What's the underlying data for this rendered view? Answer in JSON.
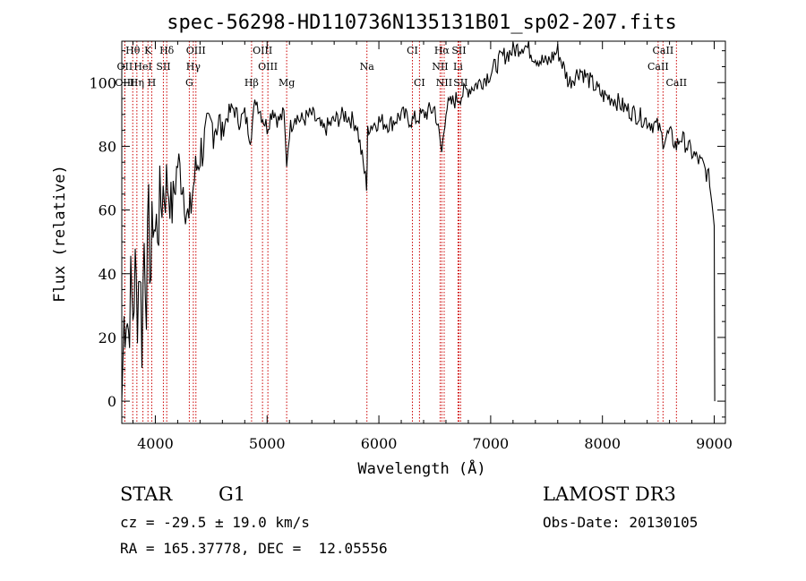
{
  "chart_data": {
    "type": "line",
    "title": "spec-56298-HD110736N135131B01_sp02-207.fits",
    "xlabel": "Wavelength (Å)",
    "ylabel": "Flux (relative)",
    "xlim": [
      3700,
      9100
    ],
    "ylim": [
      -7,
      113
    ],
    "xticks": [
      4000,
      5000,
      6000,
      7000,
      8000,
      9000
    ],
    "yticks": [
      0,
      20,
      40,
      60,
      80,
      100
    ],
    "series": [
      {
        "name": "flux",
        "x": [
          3700,
          3720,
          3740,
          3760,
          3780,
          3800,
          3820,
          3840,
          3860,
          3880,
          3900,
          3920,
          3940,
          3960,
          3980,
          4000,
          4030,
          4060,
          4100,
          4150,
          4200,
          4250,
          4300,
          4330,
          4350,
          4400,
          4450,
          4500,
          4550,
          4600,
          4650,
          4700,
          4750,
          4800,
          4850,
          4900,
          4950,
          5000,
          5050,
          5100,
          5150,
          5175,
          5200,
          5250,
          5300,
          5400,
          5500,
          5600,
          5700,
          5800,
          5890,
          5895,
          5900,
          6000,
          6100,
          6200,
          6300,
          6400,
          6500,
          6563,
          6600,
          6700,
          6800,
          6900,
          7000,
          7100,
          7200,
          7300,
          7400,
          7500,
          7600,
          7700,
          7800,
          7900,
          8000,
          8100,
          8200,
          8300,
          8400,
          8500,
          8542,
          8600,
          8662,
          8700,
          8800,
          8900,
          8950,
          8980,
          9000,
          9005
        ],
        "y": [
          0,
          25,
          30,
          22,
          35,
          28,
          40,
          30,
          45,
          20,
          50,
          35,
          55,
          40,
          60,
          52,
          58,
          65,
          70,
          60,
          75,
          68,
          55,
          65,
          70,
          78,
          82,
          86,
          88,
          85,
          90,
          92,
          88,
          90,
          83,
          95,
          90,
          86,
          92,
          88,
          90,
          75,
          85,
          90,
          88,
          90,
          85,
          88,
          90,
          87,
          68,
          75,
          86,
          88,
          87,
          90,
          88,
          90,
          92,
          78,
          92,
          95,
          98,
          100,
          103,
          108,
          110,
          112,
          108,
          106,
          110,
          100,
          104,
          100,
          96,
          95,
          92,
          90,
          88,
          86,
          82,
          84,
          80,
          83,
          78,
          74,
          70,
          62,
          55,
          0
        ]
      }
    ],
    "spectral_lines": [
      {
        "label": "Hθ",
        "wave": 3798,
        "row": 0
      },
      {
        "label": "K",
        "wave": 3934,
        "row": 0
      },
      {
        "label": "Hδ",
        "wave": 4102,
        "row": 0
      },
      {
        "label": "OIII",
        "wave": 4363,
        "row": 0
      },
      {
        "label": "OIII",
        "wave": 4959,
        "row": 0
      },
      {
        "label": "CI",
        "wave": 6300,
        "row": 0
      },
      {
        "label": "Hα",
        "wave": 6563,
        "row": 0
      },
      {
        "label": "SII",
        "wave": 6716,
        "row": 0
      },
      {
        "label": "CaII",
        "wave": 8542,
        "row": 0
      },
      {
        "label": "OII",
        "wave": 3727,
        "row": 1
      },
      {
        "label": "HeI",
        "wave": 3889,
        "row": 1
      },
      {
        "label": "SII",
        "wave": 4072,
        "row": 1
      },
      {
        "label": "Hγ",
        "wave": 4340,
        "row": 1
      },
      {
        "label": "OIII",
        "wave": 5007,
        "row": 1
      },
      {
        "label": "Na",
        "wave": 5893,
        "row": 1
      },
      {
        "label": "NII",
        "wave": 6548,
        "row": 1
      },
      {
        "label": "Li",
        "wave": 6708,
        "row": 1
      },
      {
        "label": "CaII",
        "wave": 8498,
        "row": 1
      },
      {
        "label": "OIII",
        "wave": 3727,
        "row": 2
      },
      {
        "label": "Hη",
        "wave": 3835,
        "row": 2
      },
      {
        "label": "H",
        "wave": 3968,
        "row": 2
      },
      {
        "label": "G",
        "wave": 4304,
        "row": 2
      },
      {
        "label": "Hβ",
        "wave": 4861,
        "row": 2
      },
      {
        "label": "Mg",
        "wave": 5175,
        "row": 2
      },
      {
        "label": "CI",
        "wave": 6363,
        "row": 2
      },
      {
        "label": "NII",
        "wave": 6584,
        "row": 2
      },
      {
        "label": "SII",
        "wave": 6731,
        "row": 2
      },
      {
        "label": "CaII",
        "wave": 8662,
        "row": 2
      }
    ],
    "line_color": "#cc0000"
  },
  "footer": {
    "object_type": "STAR",
    "subclass": "G1",
    "survey": "LAMOST DR3",
    "cz": "cz = -29.5 ± 19.0 km/s",
    "obs_date": "Obs-Date: 20130105",
    "coords": "RA = 165.37778, DEC =  12.05556"
  }
}
